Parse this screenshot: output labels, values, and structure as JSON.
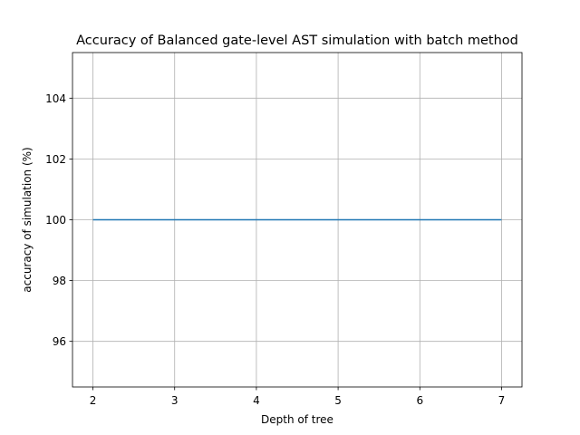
{
  "chart_data": {
    "type": "line",
    "title": "Accuracy of Balanced gate-level AST simulation with batch method",
    "xlabel": "Depth of tree",
    "ylabel": "accuracy of simulation (%)",
    "x": [
      2,
      3,
      4,
      5,
      6,
      7
    ],
    "series": [
      {
        "values": [
          100,
          100,
          100,
          100,
          100,
          100
        ],
        "color": "#1f77b4"
      }
    ],
    "xlim": [
      1.75,
      7.25
    ],
    "ylim": [
      94.5,
      105.5
    ],
    "xticks": [
      2,
      3,
      4,
      5,
      6,
      7
    ],
    "yticks": [
      96,
      98,
      100,
      102,
      104
    ],
    "grid": true,
    "grid_color": "#b0b0b0"
  }
}
